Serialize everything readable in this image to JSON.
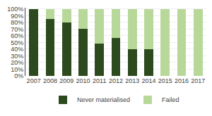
{
  "chart_data": {
    "type": "bar",
    "stacked": true,
    "categories": [
      "2007",
      "2008",
      "2009",
      "2010",
      "2011",
      "2012",
      "2013",
      "2014",
      "2015",
      "2016",
      "2017"
    ],
    "series": [
      {
        "name": "Never materialised",
        "color": "#2d4a1e",
        "values": [
          100,
          85,
          80,
          70,
          48,
          57,
          40,
          40,
          0,
          0,
          0
        ]
      },
      {
        "name": "Failed",
        "color": "#b8d89a",
        "values": [
          0,
          15,
          20,
          30,
          52,
          43,
          60,
          60,
          100,
          100,
          100
        ]
      }
    ],
    "ylim": [
      0,
      102
    ],
    "yticks": [
      {
        "value": 0,
        "label": "0%"
      },
      {
        "value": 10,
        "label": "10%"
      },
      {
        "value": 20,
        "label": "20%"
      },
      {
        "value": 30,
        "label": "30%"
      },
      {
        "value": 40,
        "label": "40%"
      },
      {
        "value": 50,
        "label": "50%"
      },
      {
        "value": 60,
        "label": "60%"
      },
      {
        "value": 70,
        "label": "70%"
      },
      {
        "value": 80,
        "label": "80%"
      },
      {
        "value": 90,
        "label": "90%"
      },
      {
        "value": 100,
        "label": "100%"
      }
    ],
    "grid": true,
    "legend": "bottom"
  }
}
